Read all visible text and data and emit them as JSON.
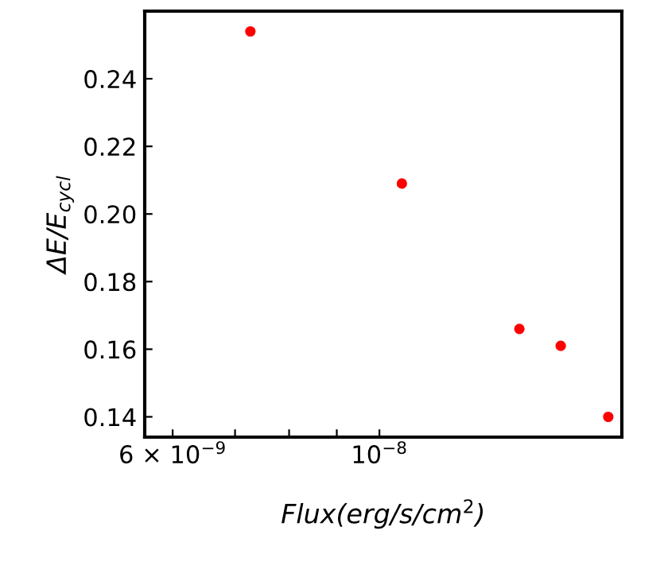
{
  "chart_data": {
    "type": "scatter",
    "xlabel": "Flux(erg/s/cm$^{2}$)",
    "ylabel": "ΔE/E$_{cycl}$",
    "x": [
      7.27e-09,
      1.057e-08,
      1.413e-08,
      1.565e-08,
      1.76e-08
    ],
    "series": [
      {
        "color": "#ff0000",
        "values": [
          0.254,
          0.209,
          0.166,
          0.161,
          0.14
        ]
      }
    ],
    "log": "x",
    "marker": "circle",
    "xlim": [
      5.6e-09,
      1.82e-08
    ],
    "ylim": [
      0.134,
      0.26
    ],
    "xticks": [
      {
        "value": 6e-09,
        "label": "6 × 10$^{−9}$"
      },
      {
        "value": 7e-09,
        "label": null
      },
      {
        "value": 8e-09,
        "label": null
      },
      {
        "value": 9e-09,
        "label": null
      },
      {
        "value": 1e-08,
        "label": "10$^{−8}$"
      }
    ],
    "yticks": [
      {
        "value": 0.14,
        "label": "0.14"
      },
      {
        "value": 0.16,
        "label": "0.16"
      },
      {
        "value": 0.18,
        "label": "0.18"
      },
      {
        "value": 0.2,
        "label": "0.20"
      },
      {
        "value": 0.22,
        "label": "0.22"
      },
      {
        "value": 0.24,
        "label": "0.24"
      }
    ],
    "grid": false
  }
}
